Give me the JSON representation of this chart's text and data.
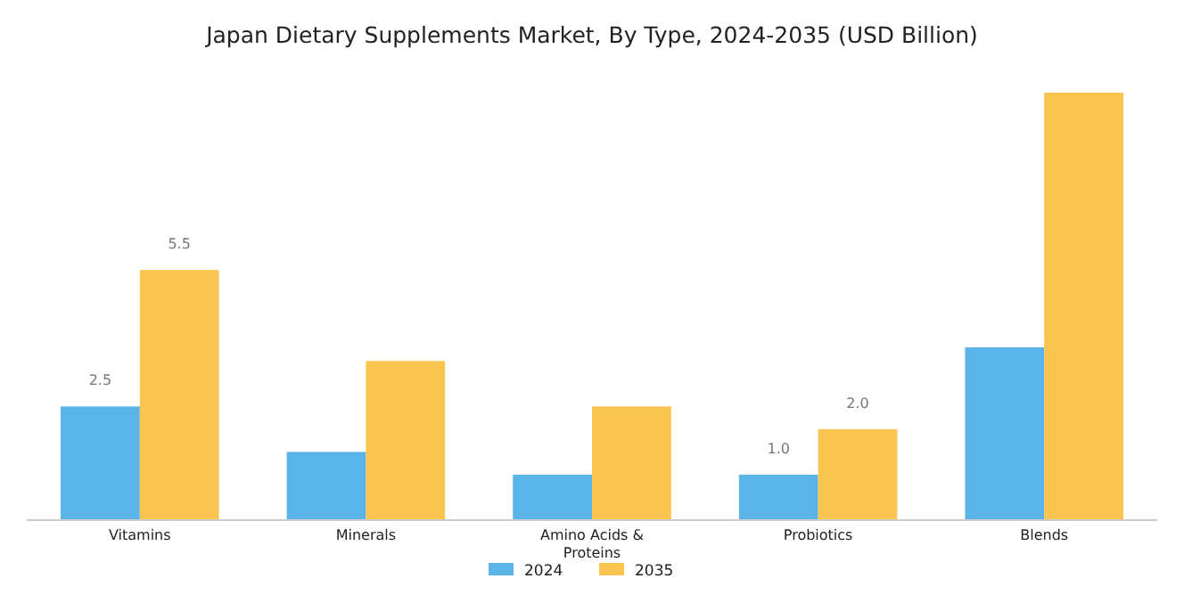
{
  "chart_data": {
    "type": "bar",
    "title": "Japan Dietary Supplements Market, By Type, 2024-2035 (USD Billion)",
    "categories": [
      "Vitamins",
      "Minerals",
      "Amino Acids & Proteins",
      "Probiotics",
      "Blends"
    ],
    "series": [
      {
        "name": "2024",
        "color": "#5ab4e8",
        "values": [
          2.5,
          1.5,
          1.0,
          1.0,
          3.8
        ],
        "value_labels": [
          "2.5",
          null,
          null,
          "1.0",
          null
        ]
      },
      {
        "name": "2035",
        "color": "#f9c44f",
        "values": [
          5.5,
          3.5,
          2.5,
          2.0,
          9.4
        ],
        "value_labels": [
          "5.5",
          null,
          null,
          "2.0",
          null
        ]
      }
    ],
    "legend": "bottom"
  }
}
